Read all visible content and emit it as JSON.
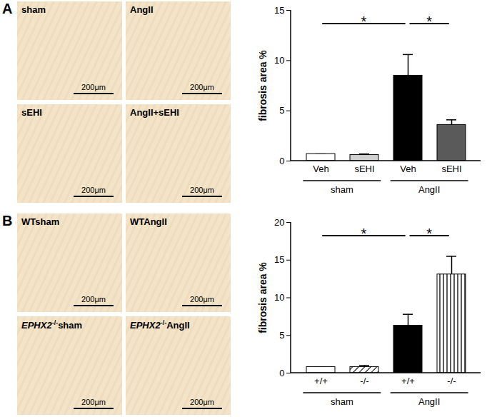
{
  "panel_labels": [
    "A",
    "B"
  ],
  "scale_bar": "200μm",
  "images": [
    [
      "sham",
      "AngII",
      "sEHI",
      "AngII+sEHI"
    ],
    [
      "WTsham",
      "WTAngII",
      {
        "italic": "EPHX2",
        "sup": "-/-",
        "text": "sham"
      },
      {
        "italic": "EPHX2",
        "sup": "-/-",
        "text": "AngII"
      }
    ]
  ],
  "chart_data": [
    {
      "type": "bar",
      "y_label": "fibrosis area %",
      "categories": [
        "Veh",
        "sEHI",
        "Veh",
        "sEHI"
      ],
      "groups": [
        {
          "name": "sham",
          "size": 2
        },
        {
          "name": "AngII",
          "size": 2
        }
      ],
      "values": [
        0.7,
        0.6,
        8.5,
        3.6
      ],
      "error": [
        0,
        0.1,
        2.1,
        0.5
      ],
      "colors": [
        "#ffffff",
        "#d0d0d0",
        "#000000",
        "#5a5a5a"
      ],
      "ylim": [
        0,
        15
      ],
      "yticks": [
        0,
        5,
        10,
        15
      ],
      "annotations": [
        {
          "from": 0,
          "to": 2,
          "label": "*"
        },
        {
          "from": 2,
          "to": 3,
          "label": "*"
        }
      ]
    },
    {
      "type": "bar",
      "y_label": "fibrosis area %",
      "categories": [
        "+/+",
        "-/-",
        "+/+",
        "-/-"
      ],
      "groups": [
        {
          "name": "sham",
          "size": 2
        },
        {
          "name": "AngII",
          "size": 2
        }
      ],
      "values": [
        0.8,
        0.8,
        6.3,
        13.1
      ],
      "error": [
        0,
        0.2,
        1.5,
        2.4
      ],
      "colors": [
        "#ffffff",
        "#ffffff",
        "#000000",
        "#ffffff"
      ],
      "ylim": [
        0,
        20
      ],
      "yticks": [
        0,
        5,
        10,
        15,
        20
      ],
      "annotations": [
        {
          "from": 0,
          "to": 2,
          "label": "*"
        },
        {
          "from": 2,
          "to": 3,
          "label": "*"
        }
      ]
    }
  ]
}
